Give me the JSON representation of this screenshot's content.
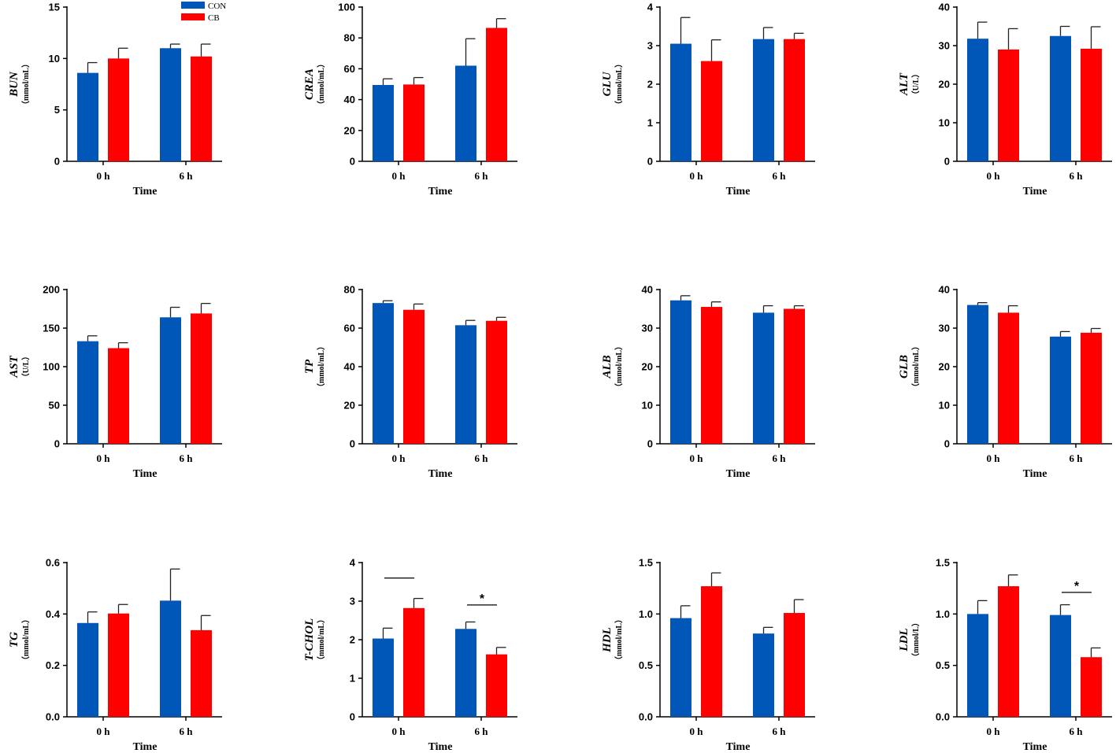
{
  "legend": {
    "entries": [
      {
        "name": "CON",
        "color": "#0057b7"
      },
      {
        "name": "CB",
        "color": "#ff0000"
      }
    ]
  },
  "chart_data": [
    {
      "type": "bar",
      "ylabel": "BUN",
      "unit": "（mmol/mL）",
      "xlabel": "Time",
      "categories": [
        "0 h",
        "6 h"
      ],
      "ylim": [
        0,
        15
      ],
      "yticks": [
        "0",
        "5",
        "10",
        "15"
      ],
      "series": [
        {
          "name": "CON",
          "values": [
            8.6,
            11.0
          ],
          "errors": [
            1.0,
            0.4
          ]
        },
        {
          "name": "CB",
          "values": [
            10.0,
            10.2
          ],
          "errors": [
            1.0,
            1.2
          ]
        }
      ],
      "annotations": []
    },
    {
      "type": "bar",
      "ylabel": "CREA",
      "unit": "（mmol/mL）",
      "xlabel": "Time",
      "categories": [
        "0 h",
        "6 h"
      ],
      "ylim": [
        0,
        100
      ],
      "yticks": [
        "0",
        "20",
        "40",
        "60",
        "80",
        "100"
      ],
      "series": [
        {
          "name": "CON",
          "values": [
            49.5,
            62.0
          ],
          "errors": [
            4.0,
            17.5
          ]
        },
        {
          "name": "CB",
          "values": [
            49.8,
            86.5
          ],
          "errors": [
            4.5,
            6.0
          ]
        }
      ],
      "annotations": []
    },
    {
      "type": "bar",
      "ylabel": "GLU",
      "unit": "（mmol/mL）",
      "xlabel": "Time",
      "categories": [
        "0 h",
        "6 h"
      ],
      "ylim": [
        0,
        4
      ],
      "yticks": [
        "0",
        "1",
        "2",
        "3",
        "4"
      ],
      "series": [
        {
          "name": "CON",
          "values": [
            3.05,
            3.17
          ],
          "errors": [
            0.68,
            0.3
          ]
        },
        {
          "name": "CB",
          "values": [
            2.6,
            3.17
          ],
          "errors": [
            0.55,
            0.15
          ]
        }
      ],
      "annotations": []
    },
    {
      "type": "bar",
      "ylabel": "ALT",
      "unit": "（U/L）",
      "xlabel": "Time",
      "categories": [
        "0 h",
        "6 h"
      ],
      "ylim": [
        0,
        40
      ],
      "yticks": [
        "0",
        "10",
        "20",
        "30",
        "40"
      ],
      "series": [
        {
          "name": "CON",
          "values": [
            31.8,
            32.5
          ],
          "errors": [
            4.3,
            2.5
          ]
        },
        {
          "name": "CB",
          "values": [
            29.0,
            29.2
          ],
          "errors": [
            5.4,
            5.7
          ]
        }
      ],
      "annotations": []
    },
    {
      "type": "bar",
      "ylabel": "AST",
      "unit": "（U/L）",
      "xlabel": "Time",
      "categories": [
        "0 h",
        "6 h"
      ],
      "ylim": [
        0,
        200
      ],
      "yticks": [
        "0",
        "50",
        "100",
        "150",
        "200"
      ],
      "series": [
        {
          "name": "CON",
          "values": [
            133,
            164
          ],
          "errors": [
            7,
            13
          ]
        },
        {
          "name": "CB",
          "values": [
            124,
            169
          ],
          "errors": [
            7,
            13
          ]
        }
      ],
      "annotations": []
    },
    {
      "type": "bar",
      "ylabel": "TP",
      "unit": "（mmol/mL）",
      "xlabel": "Time",
      "categories": [
        "0 h",
        "6 h"
      ],
      "ylim": [
        0,
        80
      ],
      "yticks": [
        "0",
        "20",
        "40",
        "60",
        "80"
      ],
      "series": [
        {
          "name": "CON",
          "values": [
            73.0,
            61.5
          ],
          "errors": [
            1.2,
            2.5
          ]
        },
        {
          "name": "CB",
          "values": [
            69.5,
            63.8
          ],
          "errors": [
            3.0,
            1.8
          ]
        }
      ],
      "annotations": []
    },
    {
      "type": "bar",
      "ylabel": "ALB",
      "unit": "（mmol/mL）",
      "xlabel": "Time",
      "categories": [
        "0 h",
        "6 h"
      ],
      "ylim": [
        0,
        40
      ],
      "yticks": [
        "0",
        "10",
        "20",
        "30",
        "40"
      ],
      "series": [
        {
          "name": "CON",
          "values": [
            37.2,
            34.0
          ],
          "errors": [
            1.2,
            1.8
          ]
        },
        {
          "name": "CB",
          "values": [
            35.5,
            35.0
          ],
          "errors": [
            1.3,
            0.8
          ]
        }
      ],
      "annotations": []
    },
    {
      "type": "bar",
      "ylabel": "GLB",
      "unit": "（mmol/mL）",
      "xlabel": "Time",
      "categories": [
        "0 h",
        "6 h"
      ],
      "ylim": [
        0,
        40
      ],
      "yticks": [
        "0",
        "10",
        "20",
        "30",
        "40"
      ],
      "series": [
        {
          "name": "CON",
          "values": [
            36.0,
            27.8
          ],
          "errors": [
            0.6,
            1.3
          ]
        },
        {
          "name": "CB",
          "values": [
            34.0,
            28.8
          ],
          "errors": [
            1.8,
            1.1
          ]
        }
      ],
      "annotations": []
    },
    {
      "type": "bar",
      "ylabel": "TG",
      "unit": "（mmol/mL）",
      "xlabel": "Time",
      "categories": [
        "0 h",
        "6 h"
      ],
      "ylim": [
        0,
        0.6
      ],
      "yticks": [
        "0.0",
        "0.2",
        "0.4",
        "0.6"
      ],
      "series": [
        {
          "name": "CON",
          "values": [
            0.365,
            0.452
          ],
          "errors": [
            0.043,
            0.123
          ]
        },
        {
          "name": "CB",
          "values": [
            0.402,
            0.337
          ],
          "errors": [
            0.035,
            0.057
          ]
        }
      ],
      "annotations": []
    },
    {
      "type": "bar",
      "ylabel": "T-CHOL",
      "unit": "（mmol/mL）",
      "xlabel": "Time",
      "categories": [
        "0 h",
        "6 h"
      ],
      "ylim": [
        0,
        4
      ],
      "yticks": [
        "0",
        "1",
        "2",
        "3",
        "4"
      ],
      "series": [
        {
          "name": "CON",
          "values": [
            2.03,
            2.28
          ],
          "errors": [
            0.27,
            0.18
          ]
        },
        {
          "name": "CB",
          "values": [
            2.82,
            1.62
          ],
          "errors": [
            0.25,
            0.18
          ]
        }
      ],
      "annotations": [
        {
          "category": 0,
          "level": 3.6,
          "text": ""
        },
        {
          "category": 1,
          "level": 2.9,
          "text": "*"
        }
      ]
    },
    {
      "type": "bar",
      "ylabel": "HDL",
      "unit": "（mmol/mL）",
      "xlabel": "Time",
      "categories": [
        "0 h",
        "6 h"
      ],
      "ylim": [
        0,
        1.5
      ],
      "yticks": [
        "0.0",
        "0.5",
        "1.0",
        "1.5"
      ],
      "series": [
        {
          "name": "CON",
          "values": [
            0.96,
            0.81
          ],
          "errors": [
            0.12,
            0.06
          ]
        },
        {
          "name": "CB",
          "values": [
            1.27,
            1.01
          ],
          "errors": [
            0.13,
            0.13
          ]
        }
      ],
      "annotations": []
    },
    {
      "type": "bar",
      "ylabel": "LDL",
      "unit": "（mmol/L）",
      "xlabel": "Time",
      "categories": [
        "0 h",
        "6 h"
      ],
      "ylim": [
        0,
        1.5
      ],
      "yticks": [
        "0.0",
        "0.5",
        "1.0",
        "1.5"
      ],
      "series": [
        {
          "name": "CON",
          "values": [
            1.0,
            0.99
          ],
          "errors": [
            0.13,
            0.1
          ]
        },
        {
          "name": "CB",
          "values": [
            1.27,
            0.58
          ],
          "errors": [
            0.11,
            0.09
          ]
        }
      ],
      "annotations": [
        {
          "category": 1,
          "level": 1.21,
          "text": "*"
        }
      ]
    }
  ]
}
